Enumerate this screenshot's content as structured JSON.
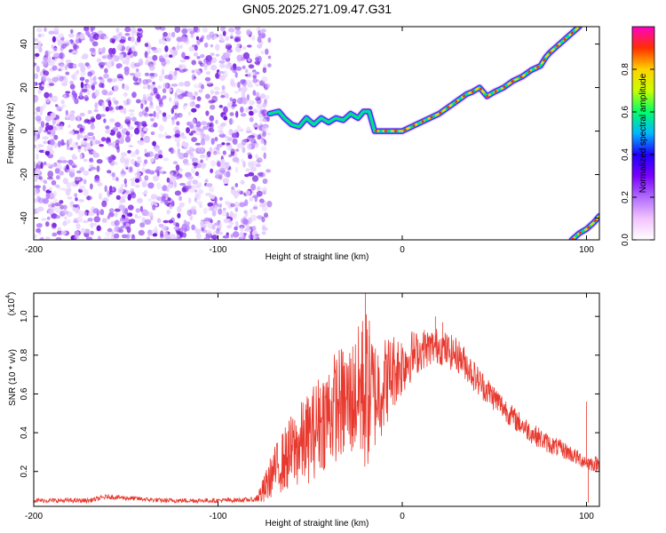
{
  "figure_title": "GN05.2025.271.09.47.G31",
  "colors": {
    "signal_line": "#e8392e",
    "cloud": "#8a35e8",
    "cmap": [
      "#ffffff",
      "#f2c3ff",
      "#b06cff",
      "#7a00ff",
      "#2000ff",
      "#00b6ff",
      "#00ff6a",
      "#c8ff00",
      "#ffd200",
      "#ff3000",
      "#ff00c8"
    ]
  },
  "chart_data": [
    {
      "type": "heatmap",
      "name": "spectrogram",
      "xlabel": "Height of straight line (km)",
      "ylabel": "Frequency (Hz)",
      "xlim": [
        -200,
        107
      ],
      "ylim": [
        -50,
        48
      ],
      "xticks": [
        -200,
        -100,
        0,
        100
      ],
      "xtick_labels": [
        "-200",
        "-100",
        "0",
        "100"
      ],
      "yticks": [
        40,
        20,
        0,
        -20,
        -40
      ],
      "ytick_labels": [
        "40",
        "20",
        "0",
        "-20",
        "-40"
      ],
      "noise_region": {
        "x": [
          -200,
          -72
        ],
        "y": [
          -50,
          48
        ]
      },
      "trace": {
        "x": [
          -72,
          -67,
          -64,
          -60,
          -56,
          -52,
          -48,
          -44,
          -40,
          -36,
          -32,
          -28,
          -24,
          -21,
          -18,
          -15,
          -10,
          -5,
          0,
          5,
          10,
          15,
          20,
          25,
          30,
          35,
          38,
          42,
          46,
          50,
          55,
          60,
          65,
          70,
          75,
          78,
          80,
          84,
          88,
          92,
          96
        ],
        "y": [
          8,
          9,
          6,
          3,
          2,
          6,
          3,
          6,
          4,
          6,
          5,
          8,
          6,
          9,
          9,
          0,
          0,
          0,
          0,
          2,
          4,
          6,
          8,
          11,
          14,
          17,
          18,
          20,
          16,
          18,
          20,
          23,
          25,
          28,
          30,
          34,
          36,
          39,
          42,
          45,
          48
        ],
        "ghost": {
          "x": [
            92,
            96,
            100,
            104,
            107
          ],
          "y": [
            -50,
            -47,
            -45,
            -42,
            -39
          ]
        }
      },
      "colorbar": {
        "label": "Normalized spectral amplitude",
        "range": [
          0,
          1
        ],
        "ticks": [
          0.0,
          0.2,
          0.4,
          0.6,
          0.8
        ],
        "tick_labels": [
          "0.0",
          "0.2",
          "0.4",
          "0.6",
          "0.8"
        ]
      }
    },
    {
      "type": "line",
      "name": "snr",
      "xlabel": "Height of straight line (km)",
      "ylabel": "SNR (10 * v/v)",
      "yscale_label": "(x10",
      "yscale_exp": "4",
      "yscale_close": ")",
      "xlim": [
        -200,
        107
      ],
      "ylim": [
        0.02,
        1.12
      ],
      "xticks": [
        -200,
        -100,
        0,
        100
      ],
      "xtick_labels": [
        "-200",
        "-100",
        "0",
        "100"
      ],
      "yticks": [
        0.2,
        0.4,
        0.6,
        0.8,
        1.0
      ],
      "ytick_labels": [
        "0.2",
        "0.4",
        "0.6",
        "0.8",
        "1.0"
      ],
      "envelope": {
        "x": [
          -200,
          -170,
          -160,
          -130,
          -100,
          -80,
          -75,
          -70,
          -60,
          -50,
          -45,
          -40,
          -35,
          -30,
          -25,
          -20,
          -15,
          -10,
          -5,
          0,
          5,
          10,
          15,
          20,
          25,
          30,
          35,
          40,
          50,
          60,
          70,
          80,
          90,
          95,
          100,
          103,
          107
        ],
        "y": [
          0.05,
          0.05,
          0.07,
          0.05,
          0.05,
          0.055,
          0.1,
          0.2,
          0.3,
          0.38,
          0.45,
          0.5,
          0.55,
          0.55,
          0.6,
          0.62,
          0.6,
          0.65,
          0.72,
          0.75,
          0.8,
          0.82,
          0.84,
          0.85,
          0.82,
          0.8,
          0.75,
          0.68,
          0.58,
          0.48,
          0.4,
          0.34,
          0.3,
          0.27,
          0.25,
          0.24,
          0.24
        ],
        "noise": {
          "x": [
            -200,
            -80,
            -75,
            -60,
            -40,
            -25,
            -20,
            -15,
            -5,
            10,
            30,
            60,
            100,
            107
          ],
          "amp": [
            0.012,
            0.012,
            0.08,
            0.2,
            0.28,
            0.32,
            0.45,
            0.3,
            0.2,
            0.1,
            0.09,
            0.06,
            0.04,
            0.04
          ]
        }
      },
      "spikes": [
        {
          "x": -20,
          "y": 1.12
        },
        {
          "x": -22,
          "y": 0.92
        },
        {
          "x": -18,
          "y": 0.9
        },
        {
          "x": -43,
          "y": 0.65
        },
        {
          "x": -45,
          "y": 0.58
        },
        {
          "x": -28,
          "y": 0.68
        },
        {
          "x": 18,
          "y": 1.0
        },
        {
          "x": 22,
          "y": 0.97
        },
        {
          "x": 12,
          "y": 0.93
        },
        {
          "x": 100,
          "y": 0.56
        },
        {
          "x": 101,
          "y": 0.04
        }
      ]
    }
  ]
}
